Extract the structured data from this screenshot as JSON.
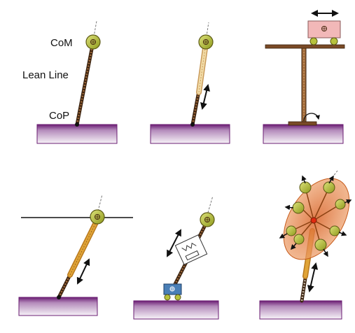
{
  "labels": {
    "com": "CoM",
    "lean_line": "Lean Line",
    "cop": "CoP"
  },
  "colors": {
    "ground_dark": "#6a1c72",
    "ground_mid": "#b48bbb",
    "ground_light": "#f3eef5",
    "rod_brown": "#7a4a26",
    "rod_dark": "#3a220f",
    "rod_tan": "#e8c989",
    "rod_orange": "#d89a2e",
    "com_green": "#b7c23c",
    "cart_pink": "#f2b8b8",
    "cart_blue": "#4a7fb7",
    "ellipse_orange": "#e48a4a",
    "arrow": "#111111"
  },
  "panels": [
    {
      "id": "simple-inverted-pendulum"
    },
    {
      "id": "variable-length-pendulum"
    },
    {
      "id": "cart-table-model"
    },
    {
      "id": "constrained-height-pendulum"
    },
    {
      "id": "spring-damper-pendulum"
    },
    {
      "id": "multi-body-model"
    }
  ]
}
